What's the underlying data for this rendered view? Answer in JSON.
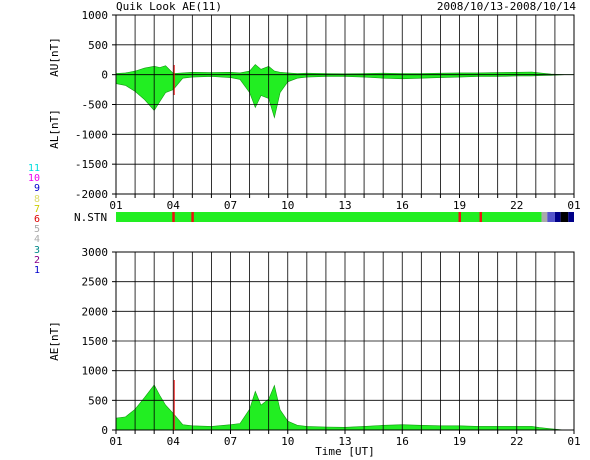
{
  "header": {
    "title": "Quik Look AE(11)",
    "date_range": "2008/10/13-2008/10/14"
  },
  "colors": {
    "fill": "#22ee22",
    "grid": "#000000",
    "frame": "#000000",
    "text": "#000000",
    "marker_red": "#ee1111"
  },
  "station_legend": {
    "numbers": [
      "11",
      "10",
      "9",
      "8",
      "7",
      "6",
      "5",
      "4",
      "3",
      "2",
      "1"
    ],
    "colors": [
      "#00dddd",
      "#ee00ee",
      "#0000cc",
      "#dddd66",
      "#cccc00",
      "#dd0000",
      "#aaaaaa",
      "#aaaaaa",
      "#008888",
      "#880088",
      "#0000cc"
    ]
  },
  "chart_data": [
    {
      "type": "area",
      "ylabel_top": "AU[nT]",
      "ylabel_bottom": "AL[nT]",
      "ylim": [
        -2000,
        1000
      ],
      "yticks": [
        1000,
        500,
        0,
        -500,
        -1000,
        -1500,
        -2000
      ],
      "xtick_labels": [
        "01",
        "04",
        "07",
        "10",
        "13",
        "16",
        "19",
        "22",
        "01"
      ],
      "xlim_hours": [
        1,
        25
      ],
      "grid": true,
      "series": [
        {
          "x": [
            1,
            1.5,
            2,
            2.5,
            3,
            3.3,
            3.6,
            4,
            4.5,
            5,
            6,
            7,
            7.5,
            8,
            8.3,
            8.6,
            9,
            9.3,
            9.6,
            10,
            10.5,
            11,
            12,
            13,
            14,
            15,
            16,
            17,
            18,
            19,
            20,
            21,
            22,
            22.8,
            23.2,
            23.8,
            24.5,
            25
          ],
          "values": [
            20,
            30,
            60,
            110,
            140,
            120,
            150,
            20,
            30,
            40,
            35,
            40,
            30,
            60,
            170,
            90,
            140,
            60,
            40,
            30,
            20,
            25,
            20,
            15,
            20,
            25,
            20,
            20,
            25,
            30,
            30,
            35,
            40,
            45,
            30,
            10,
            0,
            0
          ]
        },
        {
          "x": [
            1,
            1.5,
            2,
            2.5,
            3,
            3.3,
            3.6,
            4,
            4.5,
            5,
            6,
            7,
            7.5,
            8,
            8.3,
            8.6,
            9,
            9.3,
            9.6,
            10,
            10.5,
            11,
            12,
            13,
            14,
            15,
            16,
            17,
            18,
            19,
            20,
            21,
            22,
            22.8,
            23.2,
            23.8,
            24.5,
            25
          ],
          "values": [
            -150,
            -180,
            -280,
            -420,
            -600,
            -450,
            -300,
            -250,
            -60,
            -40,
            -30,
            -50,
            -80,
            -300,
            -550,
            -350,
            -400,
            -720,
            -300,
            -120,
            -60,
            -40,
            -30,
            -30,
            -40,
            -60,
            -70,
            -60,
            -50,
            -40,
            -30,
            -30,
            -20,
            -20,
            -15,
            -10,
            0,
            0
          ]
        }
      ]
    },
    {
      "type": "heatmap",
      "label": "N.STN",
      "segments": [
        {
          "start": 1,
          "end": 23.3,
          "color": "#22ee22"
        },
        {
          "start": 23.3,
          "end": 23.6,
          "color": "#aaaaaa"
        },
        {
          "start": 23.6,
          "end": 24.0,
          "color": "#5555cc"
        },
        {
          "start": 24.0,
          "end": 24.3,
          "color": "#000088"
        },
        {
          "start": 24.3,
          "end": 24.7,
          "color": "#000000"
        },
        {
          "start": 24.7,
          "end": 25,
          "color": "#000088"
        }
      ],
      "markers": [
        {
          "hour": 4.0,
          "color": "#ee1111"
        },
        {
          "hour": 5.0,
          "color": "#ee1111"
        },
        {
          "hour": 19.0,
          "color": "#ee1111"
        },
        {
          "hour": 20.1,
          "color": "#ee1111"
        }
      ]
    },
    {
      "type": "area",
      "ylabel": "AE[nT]",
      "xlabel": "Time [UT]",
      "ylim": [
        0,
        3000
      ],
      "yticks": [
        3000,
        2500,
        2000,
        1500,
        1000,
        500,
        0
      ],
      "xtick_labels": [
        "01",
        "04",
        "07",
        "10",
        "13",
        "16",
        "19",
        "22",
        "01"
      ],
      "xlim_hours": [
        1,
        25
      ],
      "grid": true,
      "series": [
        {
          "x": [
            1,
            1.5,
            2,
            2.5,
            3,
            3.3,
            3.6,
            4,
            4.5,
            5,
            6,
            7,
            7.5,
            8,
            8.3,
            8.6,
            9,
            9.3,
            9.6,
            10,
            10.5,
            11,
            12,
            13,
            14,
            15,
            16,
            17,
            18,
            19,
            20,
            21,
            22,
            22.8,
            23.2,
            23.8,
            24.5,
            25
          ],
          "values": [
            200,
            220,
            350,
            550,
            760,
            580,
            420,
            280,
            90,
            70,
            60,
            90,
            110,
            350,
            650,
            420,
            520,
            750,
            340,
            150,
            80,
            60,
            50,
            45,
            60,
            80,
            90,
            80,
            70,
            70,
            60,
            60,
            60,
            60,
            40,
            20,
            0,
            0
          ]
        }
      ]
    }
  ]
}
